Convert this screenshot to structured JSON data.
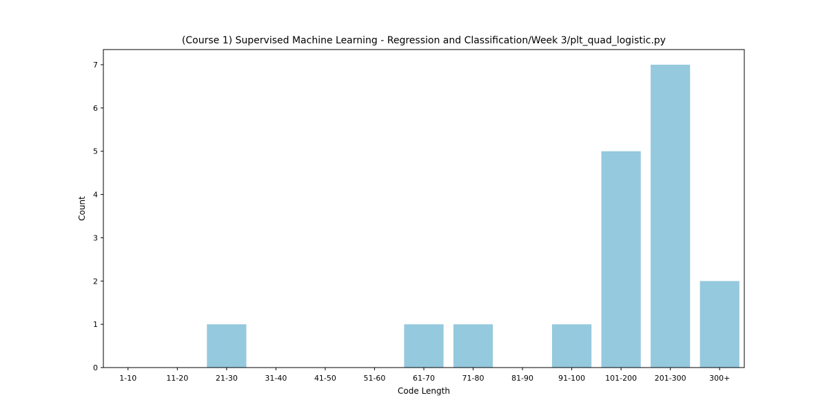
{
  "chart_data": {
    "type": "bar",
    "title": "(Course 1) Supervised Machine Learning - Regression and Classification/Week 3/plt_quad_logistic.py",
    "xlabel": "Code Length",
    "ylabel": "Count",
    "categories": [
      "1-10",
      "11-20",
      "21-30",
      "31-40",
      "41-50",
      "51-60",
      "61-70",
      "71-80",
      "81-90",
      "91-100",
      "101-200",
      "201-300",
      "300+"
    ],
    "values": [
      0,
      0,
      1,
      0,
      0,
      0,
      1,
      1,
      0,
      1,
      5,
      7,
      2
    ],
    "yticks": [
      0,
      1,
      2,
      3,
      4,
      5,
      6,
      7
    ],
    "ylim": [
      0,
      7.35
    ],
    "grid": false,
    "bar_color": "#95c9de"
  }
}
